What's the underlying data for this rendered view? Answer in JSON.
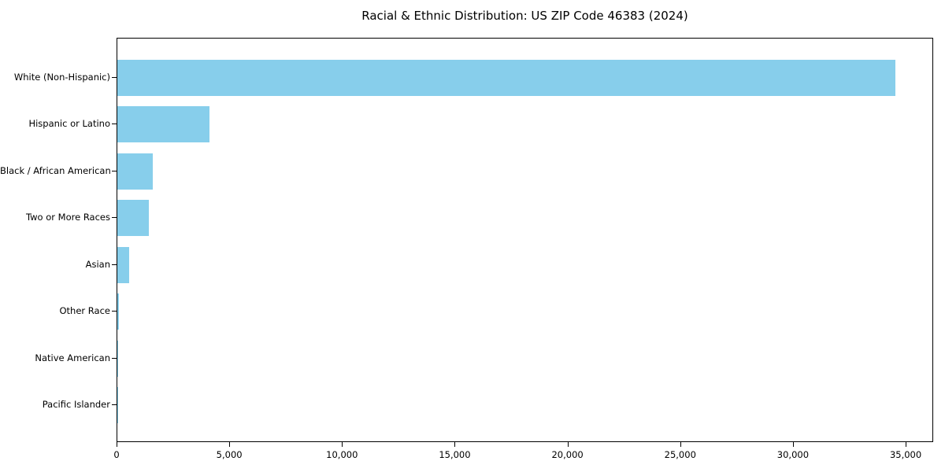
{
  "chart_data": {
    "type": "bar",
    "orientation": "horizontal",
    "title": "Racial & Ethnic Distribution: US ZIP Code 46383 (2024)",
    "categories": [
      "White (Non-Hispanic)",
      "Hispanic or Latino",
      "Black / African American",
      "Two or More Races",
      "Asian",
      "Other Race",
      "Native American",
      "Pacific Islander"
    ],
    "values": [
      34500,
      4100,
      1560,
      1410,
      510,
      60,
      40,
      10
    ],
    "xlabel": "",
    "ylabel": "",
    "xlim": [
      0,
      36150
    ],
    "xticks": [
      0,
      5000,
      10000,
      15000,
      20000,
      25000,
      30000,
      35000
    ],
    "xtick_labels": [
      "0",
      "5,000",
      "10,000",
      "15,000",
      "20,000",
      "25,000",
      "30,000",
      "35,000"
    ],
    "bar_color": "#87CEEB",
    "axis_color": "#000000",
    "text_color": "#000000",
    "background_color": "#FFFFFF",
    "grid": false,
    "legend": false
  }
}
